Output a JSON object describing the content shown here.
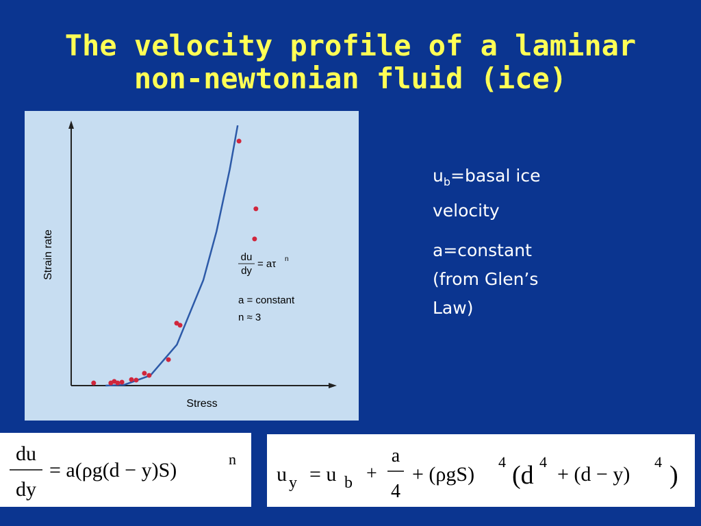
{
  "title": [
    "The velocity profile of a laminar",
    "non-newtonian fluid (ice)"
  ],
  "chart_data": {
    "type": "scatter",
    "xlabel": "Stress",
    "ylabel": "Strain rate",
    "x": [
      8.5,
      15.0,
      16.3,
      17.6,
      19.2,
      22.8,
      24.6,
      27.7,
      29.5,
      36.8,
      39.9,
      41.2,
      63.5,
      69.9,
      69.4
    ],
    "y": [
      1.0,
      1.0,
      1.6,
      1.0,
      1.3,
      2.3,
      2.1,
      4.7,
      3.9,
      9.9,
      23.8,
      23.0,
      93.2,
      67.4,
      55.9
    ],
    "color": "#d0263c",
    "xlim": [
      0,
      100
    ],
    "ylim": [
      0,
      100
    ],
    "fit": {
      "x": [
        13,
        20,
        30,
        40,
        50,
        55,
        60,
        63
      ],
      "y": [
        0,
        0.27,
        3.9,
        15.6,
        40.2,
        58.8,
        82.4,
        99.2
      ],
      "color": "#2d5aa8"
    },
    "annotation": {
      "numerator": "du",
      "denominator": "dy",
      "rhs": "= aτ",
      "exponent": "n",
      "lines": [
        "a = constant",
        "n ≈ 3"
      ]
    }
  },
  "notes": [
    {
      "main": "u",
      "sub": "b",
      "rest": "=basal ice velocity"
    },
    "a=constant (from Glen’s Law)"
  ],
  "equations": [
    {
      "numerator": "du",
      "denominator": "dy",
      "rhs": "= a(ρg(d − y)S)",
      "exponent": "n"
    },
    {
      "lhs": "u",
      "lhs_sub": "y",
      "eq": "= u",
      "eq_sub": "b",
      "plus": "+",
      "frac_num": "a",
      "frac_den": "4",
      "term": "+ (ρgS)",
      "term_exp": "4",
      "paren": "(d",
      "paren_exp": "4",
      "rest": "+ (d − y)",
      "rest_exp": "4",
      "close": ")"
    }
  ]
}
